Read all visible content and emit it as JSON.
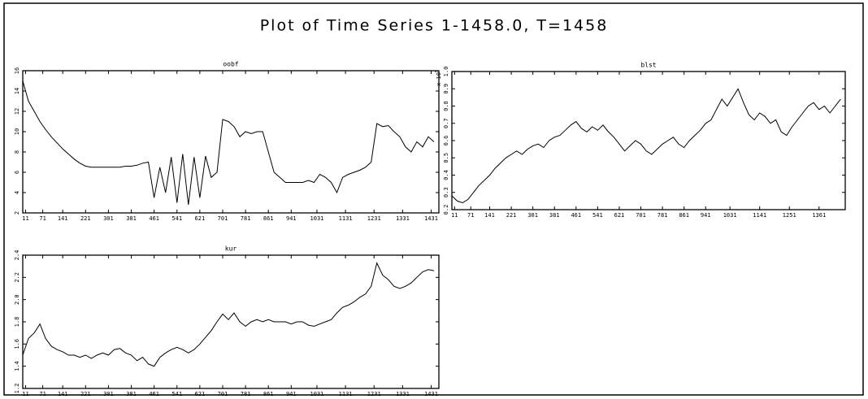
{
  "title": "Plot of Time Series 1-1458.0, T=1458",
  "chart_data": [
    {
      "type": "line",
      "title": "oobf",
      "color": "#000000",
      "x": [
        1,
        21,
        41,
        61,
        81,
        101,
        121,
        141,
        161,
        181,
        201,
        221,
        241,
        261,
        281,
        301,
        321,
        341,
        361,
        381,
        401,
        421,
        441,
        461,
        481,
        501,
        521,
        541,
        561,
        581,
        601,
        621,
        641,
        661,
        681,
        701,
        721,
        741,
        761,
        781,
        801,
        821,
        841,
        861,
        881,
        901,
        921,
        941,
        961,
        981,
        1001,
        1021,
        1041,
        1061,
        1081,
        1101,
        1121,
        1141,
        1161,
        1181,
        1201,
        1221,
        1241,
        1261,
        1281,
        1301,
        1321,
        1341,
        1361,
        1381,
        1401,
        1421,
        1441
      ],
      "values": [
        15,
        13,
        12,
        11,
        10.2,
        9.5,
        8.9,
        8.3,
        7.8,
        7.3,
        6.9,
        6.6,
        6.5,
        6.5,
        6.5,
        6.5,
        6.5,
        6.5,
        6.6,
        6.6,
        6.7,
        6.9,
        7.0,
        3.5,
        6.5,
        4.0,
        7.5,
        3.0,
        7.8,
        2.8,
        7.5,
        3.5,
        7.6,
        5.5,
        6.0,
        11.2,
        11.0,
        10.5,
        9.5,
        10.0,
        9.8,
        10.0,
        10.0,
        8.0,
        6.0,
        5.5,
        5.0,
        5.0,
        5.0,
        5.0,
        5.2,
        5.0,
        5.8,
        5.5,
        5.0,
        4.0,
        5.5,
        5.8,
        6.0,
        6.2,
        6.5,
        7.0,
        10.8,
        10.5,
        10.6,
        10.0,
        9.5,
        8.5,
        8.0,
        9.0,
        8.5,
        9.5,
        9.0
      ],
      "xlim": [
        1,
        1458
      ],
      "xticks": [
        11,
        71,
        141,
        221,
        301,
        381,
        461,
        541,
        621,
        701,
        781,
        861,
        941,
        1031,
        1131,
        1231,
        1331,
        1431
      ],
      "ylim": [
        2,
        16
      ],
      "yticks": [
        2,
        4,
        6,
        8,
        10,
        12,
        14,
        16
      ]
    },
    {
      "type": "line",
      "title": "blst",
      "y_unit": "x 10",
      "y_unit_exp": "5",
      "color": "#000000",
      "x": [
        1,
        21,
        41,
        61,
        81,
        101,
        121,
        141,
        161,
        181,
        201,
        221,
        241,
        261,
        281,
        301,
        321,
        341,
        361,
        381,
        401,
        421,
        441,
        461,
        481,
        501,
        521,
        541,
        561,
        581,
        601,
        621,
        641,
        661,
        681,
        701,
        721,
        741,
        761,
        781,
        801,
        821,
        841,
        861,
        881,
        901,
        921,
        941,
        961,
        981,
        1001,
        1021,
        1041,
        1061,
        1081,
        1101,
        1121,
        1141,
        1161,
        1181,
        1201,
        1221,
        1241,
        1261,
        1281,
        1301,
        1321,
        1341,
        1361,
        1381,
        1401,
        1421,
        1441
      ],
      "values": [
        0.28,
        0.25,
        0.24,
        0.26,
        0.3,
        0.34,
        0.37,
        0.4,
        0.44,
        0.47,
        0.5,
        0.52,
        0.54,
        0.52,
        0.55,
        0.57,
        0.58,
        0.56,
        0.6,
        0.62,
        0.63,
        0.66,
        0.69,
        0.71,
        0.67,
        0.65,
        0.68,
        0.66,
        0.69,
        0.65,
        0.62,
        0.58,
        0.54,
        0.57,
        0.6,
        0.58,
        0.54,
        0.52,
        0.55,
        0.58,
        0.6,
        0.62,
        0.58,
        0.56,
        0.6,
        0.63,
        0.66,
        0.7,
        0.72,
        0.78,
        0.84,
        0.8,
        0.85,
        0.9,
        0.82,
        0.75,
        0.72,
        0.76,
        0.74,
        0.7,
        0.72,
        0.65,
        0.63,
        0.68,
        0.72,
        0.76,
        0.8,
        0.82,
        0.78,
        0.8,
        0.76,
        0.8,
        0.84
      ],
      "xlim": [
        1,
        1458
      ],
      "xticks": [
        11,
        71,
        141,
        221,
        301,
        381,
        461,
        541,
        621,
        701,
        781,
        861,
        941,
        1031,
        1141,
        1251,
        1361
      ],
      "ylim": [
        0.2,
        1.0
      ],
      "yticks": [
        0.2,
        0.3,
        0.4,
        0.5,
        0.6,
        0.7,
        0.8,
        0.9,
        {
          "value": 1,
          "label": "1.0"
        }
      ]
    },
    {
      "type": "line",
      "title": "kur",
      "color": "#000000",
      "x": [
        1,
        21,
        41,
        61,
        81,
        101,
        121,
        141,
        161,
        181,
        201,
        221,
        241,
        261,
        281,
        301,
        321,
        341,
        361,
        381,
        401,
        421,
        441,
        461,
        481,
        501,
        521,
        541,
        561,
        581,
        601,
        621,
        641,
        661,
        681,
        701,
        721,
        741,
        761,
        781,
        801,
        821,
        841,
        861,
        881,
        901,
        921,
        941,
        961,
        981,
        1001,
        1021,
        1041,
        1061,
        1081,
        1101,
        1121,
        1141,
        1161,
        1181,
        1201,
        1221,
        1241,
        1261,
        1281,
        1301,
        1321,
        1341,
        1361,
        1381,
        1401,
        1421,
        1441
      ],
      "values": [
        1.5,
        1.65,
        1.7,
        1.78,
        1.65,
        1.58,
        1.55,
        1.53,
        1.5,
        1.5,
        1.48,
        1.5,
        1.47,
        1.5,
        1.52,
        1.5,
        1.55,
        1.56,
        1.52,
        1.5,
        1.45,
        1.48,
        1.42,
        1.4,
        1.48,
        1.52,
        1.55,
        1.57,
        1.55,
        1.52,
        1.55,
        1.6,
        1.66,
        1.72,
        1.8,
        1.87,
        1.82,
        1.88,
        1.8,
        1.76,
        1.8,
        1.82,
        1.8,
        1.82,
        1.8,
        1.8,
        1.8,
        1.78,
        1.8,
        1.8,
        1.77,
        1.76,
        1.78,
        1.8,
        1.82,
        1.88,
        1.93,
        1.95,
        1.98,
        2.02,
        2.05,
        2.12,
        2.33,
        2.22,
        2.18,
        2.12,
        2.1,
        2.12,
        2.15,
        2.2,
        2.25,
        2.27,
        2.26
      ],
      "xlim": [
        1,
        1458
      ],
      "xticks": [
        11,
        71,
        141,
        221,
        301,
        381,
        461,
        541,
        621,
        701,
        781,
        861,
        941,
        1031,
        1131,
        1231,
        1331,
        1431
      ],
      "ylim": [
        1.2,
        2.4
      ],
      "yticks": [
        1.2,
        1.4,
        1.6,
        1.8,
        {
          "value": 2,
          "label": "2.0"
        },
        2.2,
        2.4
      ]
    }
  ]
}
